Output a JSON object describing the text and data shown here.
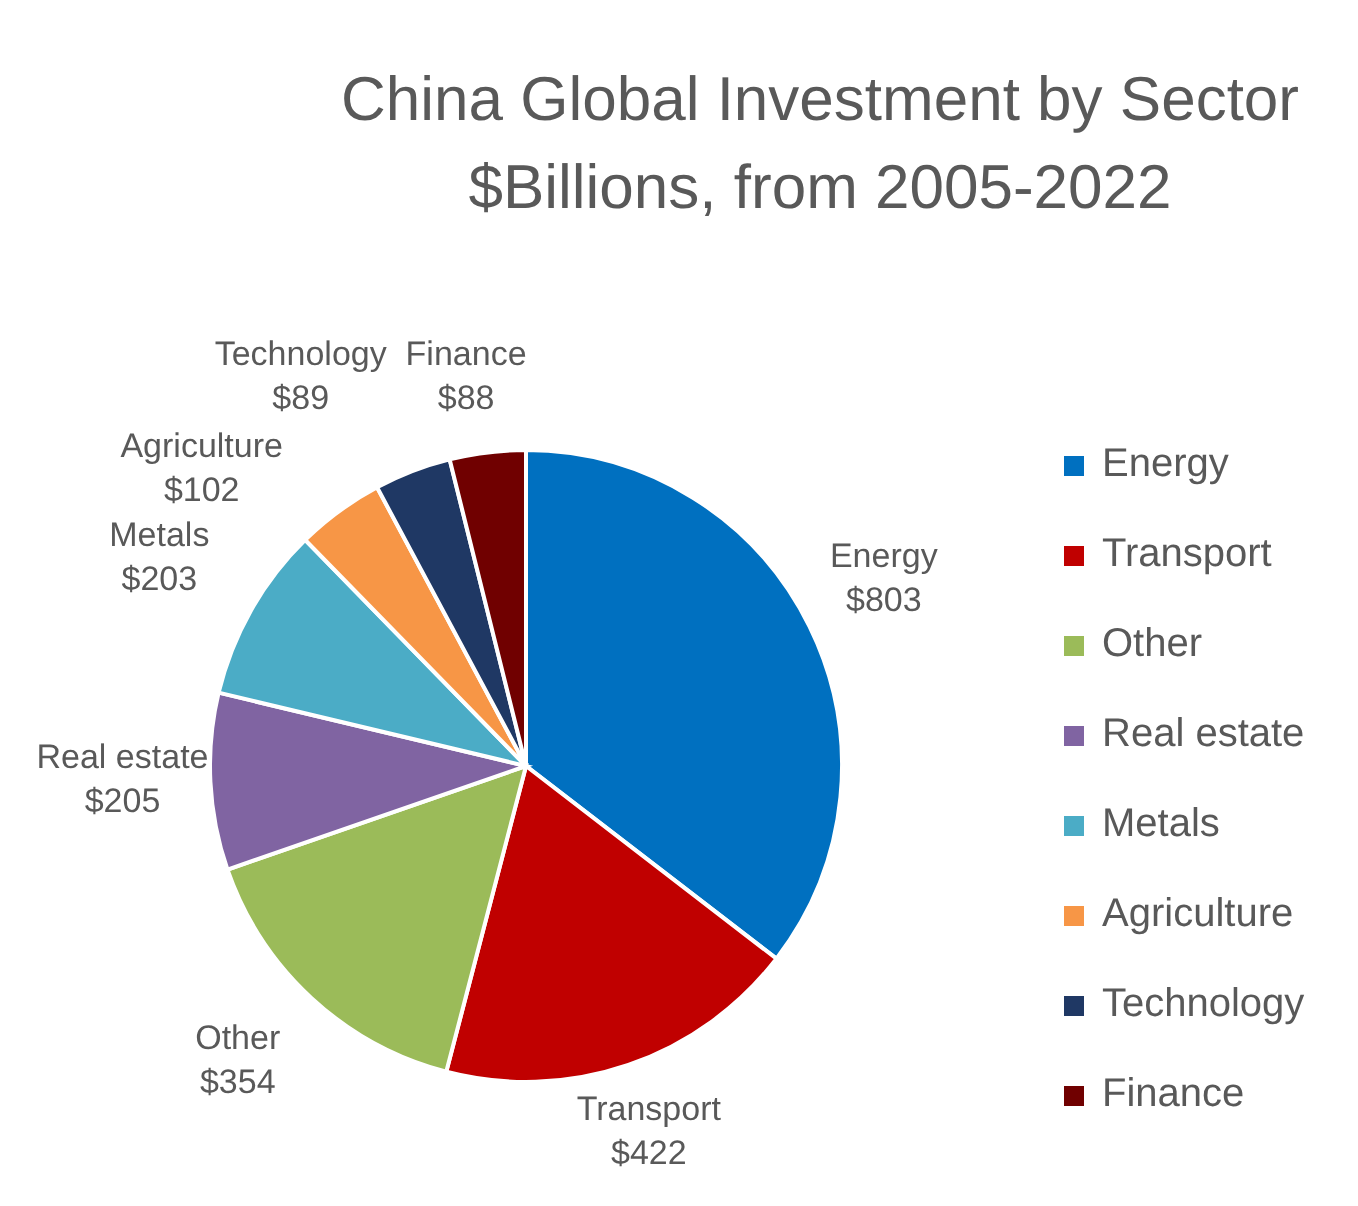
{
  "chart_data": {
    "type": "pie",
    "title": "China Global Investment by Sector",
    "subtitle": "$Billions, from 2005-2022",
    "categories": [
      "Energy",
      "Transport",
      "Other",
      "Real estate",
      "Metals",
      "Agriculture",
      "Technology",
      "Finance"
    ],
    "values": [
      803,
      422,
      354,
      205,
      203,
      102,
      89,
      88
    ],
    "value_labels": [
      "$803",
      "$422",
      "$354",
      "$205",
      "$203",
      "$102",
      "$89",
      "$88"
    ],
    "colors": [
      "#0070c0",
      "#c00000",
      "#9bbb59",
      "#8064a2",
      "#4bacc6",
      "#f79646",
      "#1f3864",
      "#700000"
    ],
    "legend": "right"
  }
}
